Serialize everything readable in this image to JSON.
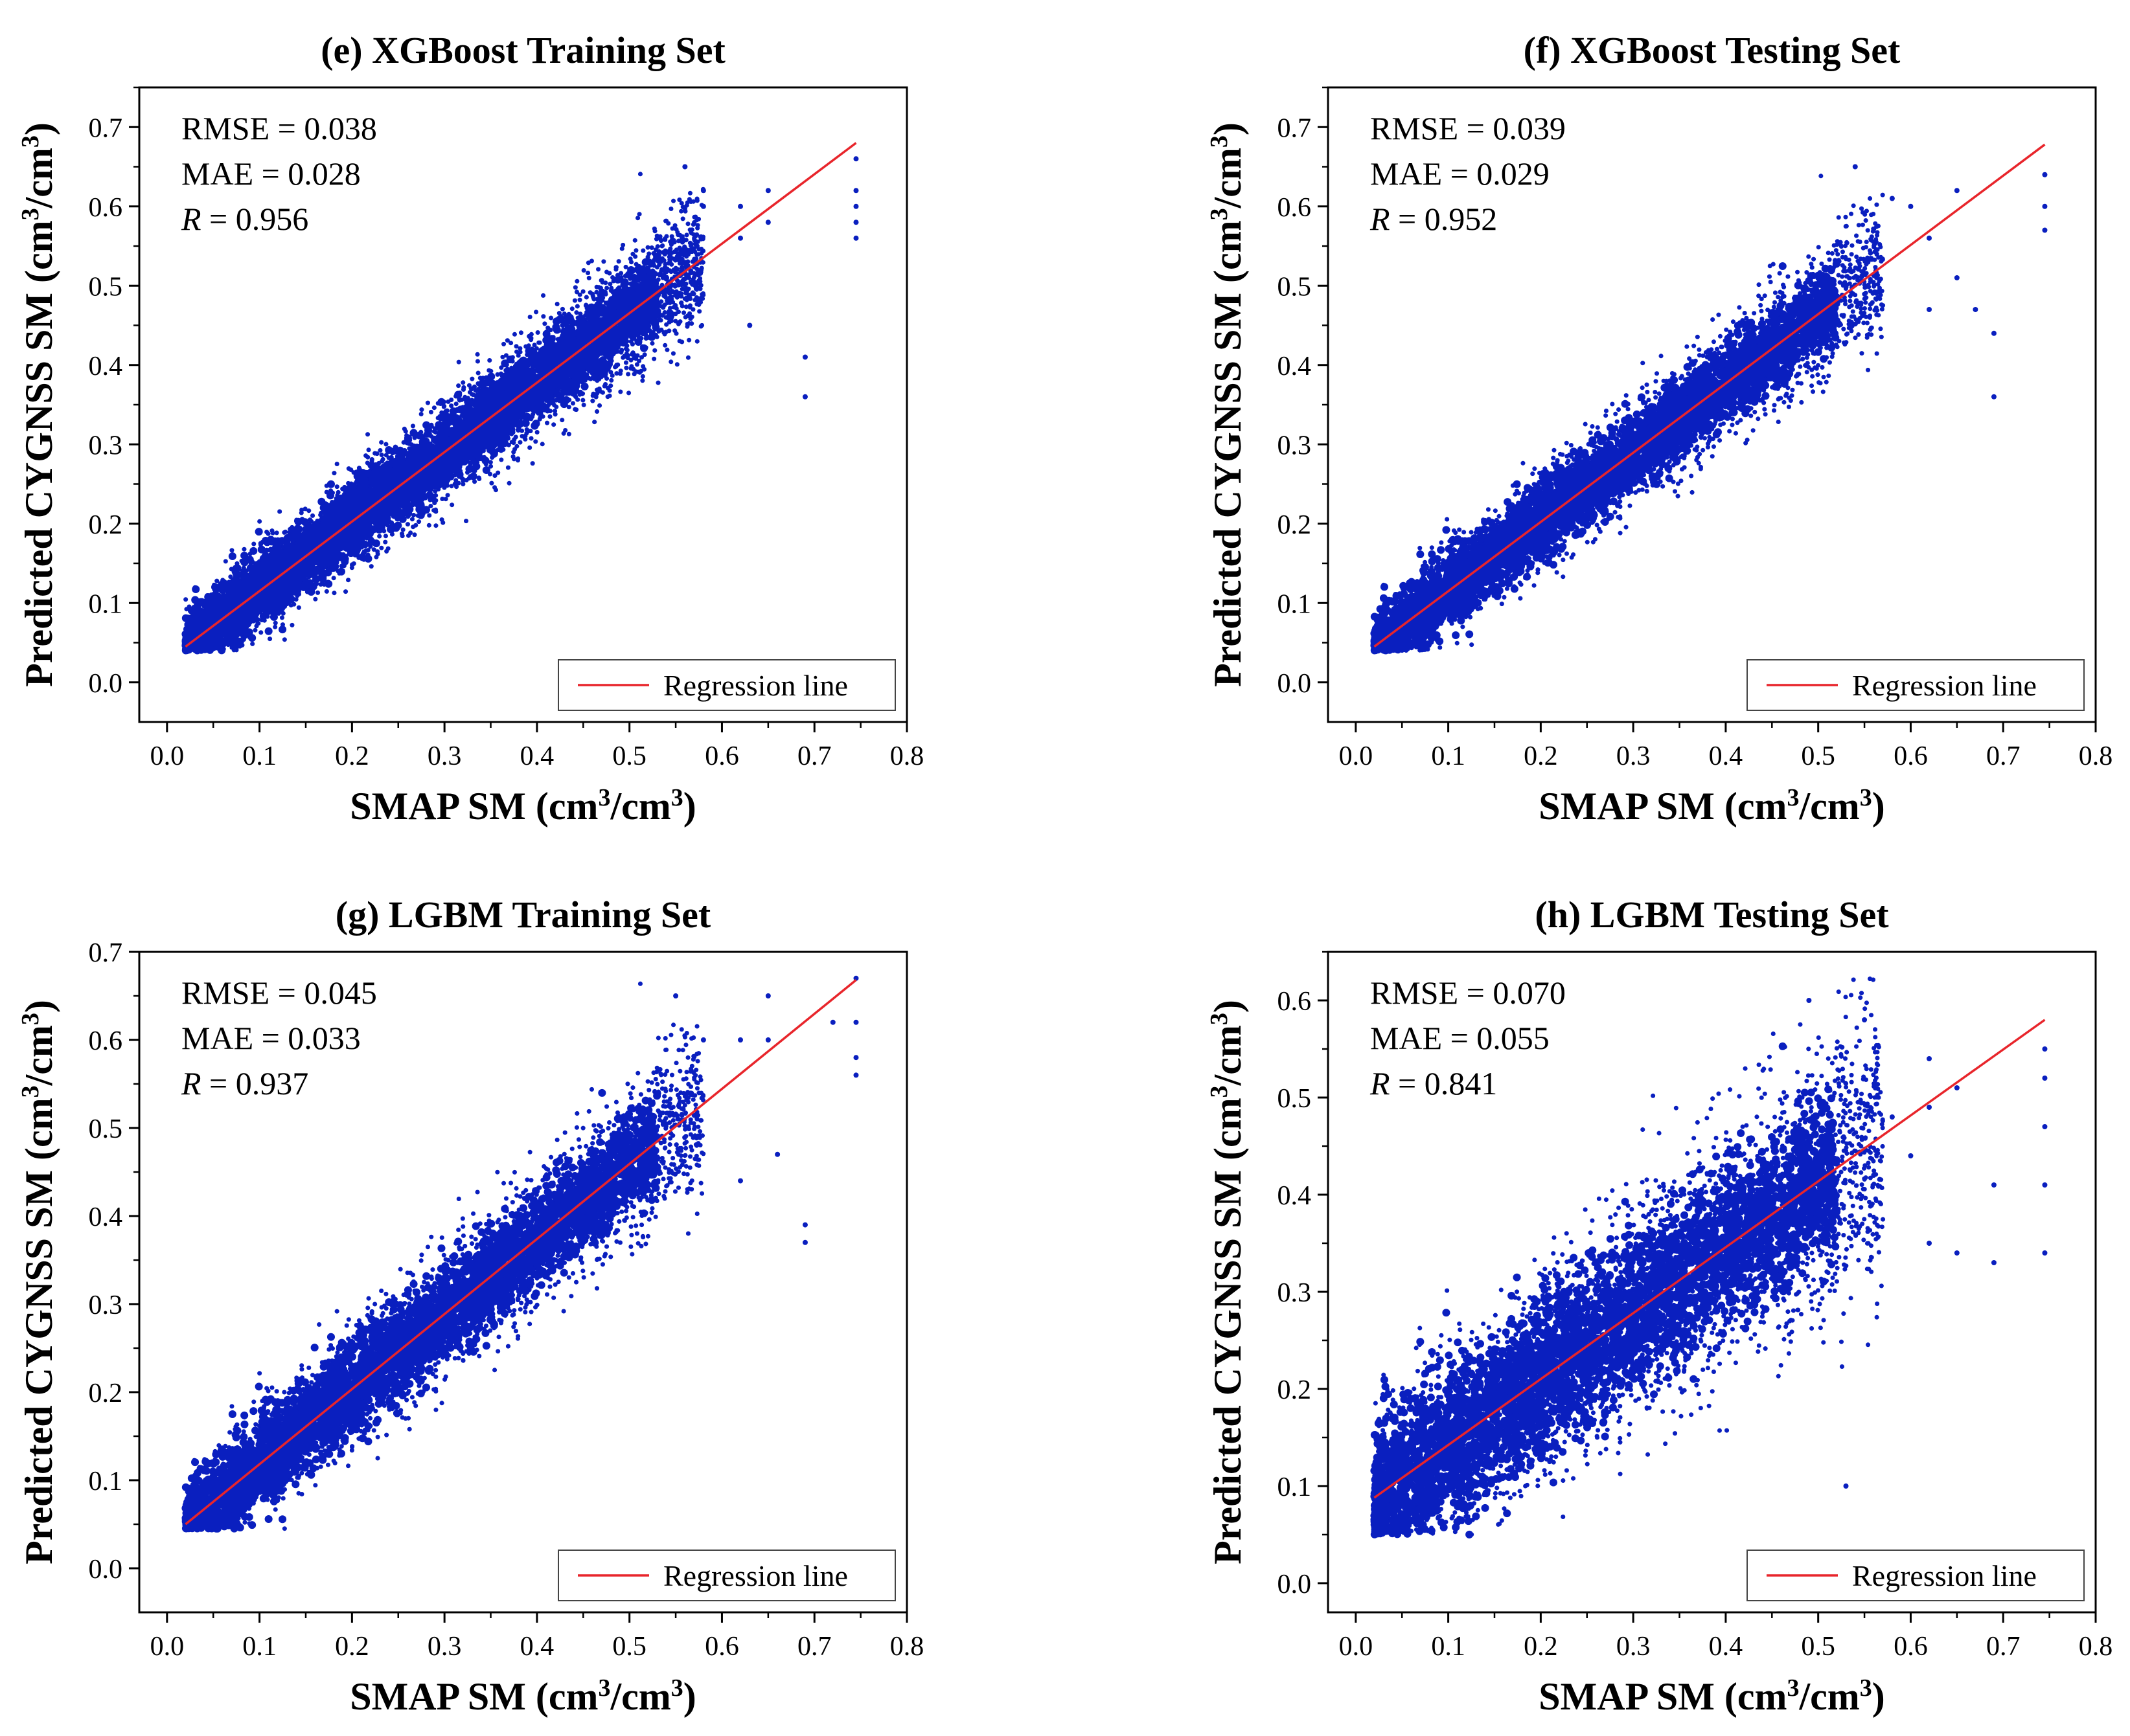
{
  "figure": {
    "background": "#ffffff",
    "point_color": "#0a1fbf",
    "line_color": "#e8252b"
  },
  "chart_data": [
    {
      "type": "scatter",
      "panel": "e",
      "title": "(e) XGBoost Training Set",
      "xlabel": {
        "main": "SMAP SM (cm",
        "sup1": "3",
        "mid": "/cm",
        "sup2": "3",
        "end": ")"
      },
      "ylabel": {
        "main": "Predicted CYGNSS SM (cm",
        "sup1": "3",
        "mid": "/cm",
        "sup2": "3",
        "end": ")"
      },
      "xlim": [
        -0.03,
        0.8
      ],
      "ylim": [
        -0.05,
        0.75
      ],
      "xticks": [
        "0.0",
        "0.1",
        "0.2",
        "0.3",
        "0.4",
        "0.5",
        "0.6",
        "0.7",
        "0.8"
      ],
      "yticks": [
        "0.0",
        "0.1",
        "0.2",
        "0.3",
        "0.4",
        "0.5",
        "0.6",
        "0.7"
      ],
      "stats": {
        "rmse": "RMSE = 0.038",
        "mae": "MAE = 0.028",
        "r_label": "R",
        "r_value": " = 0.956"
      },
      "regression_line": {
        "x": [
          0.02,
          0.745
        ],
        "y": [
          0.045,
          0.68
        ]
      },
      "legend": "Regression line",
      "point_cloud": {
        "x_range": [
          0.02,
          0.58
        ],
        "slope": 0.876,
        "intercept": 0.028,
        "spread": 0.038,
        "min_y": 0.04
      },
      "outliers": [
        [
          0.62,
          0.6
        ],
        [
          0.62,
          0.56
        ],
        [
          0.65,
          0.62
        ],
        [
          0.65,
          0.58
        ],
        [
          0.69,
          0.41
        ],
        [
          0.69,
          0.36
        ],
        [
          0.745,
          0.66
        ],
        [
          0.745,
          0.62
        ],
        [
          0.745,
          0.6
        ],
        [
          0.745,
          0.58
        ],
        [
          0.745,
          0.56
        ],
        [
          0.58,
          0.6
        ],
        [
          0.56,
          0.65
        ],
        [
          0.63,
          0.45
        ],
        [
          0.58,
          0.62
        ]
      ]
    },
    {
      "type": "scatter",
      "panel": "f",
      "title": "(f) XGBoost Testing Set",
      "xlabel": {
        "main": "SMAP SM (cm",
        "sup1": "3",
        "mid": "/cm",
        "sup2": "3",
        "end": ")"
      },
      "ylabel": {
        "main": "Predicted CYGNSS SM (cm",
        "sup1": "3",
        "mid": "/cm",
        "sup2": "3",
        "end": ")"
      },
      "xlim": [
        -0.03,
        0.8
      ],
      "ylim": [
        -0.05,
        0.75
      ],
      "xticks": [
        "0.0",
        "0.1",
        "0.2",
        "0.3",
        "0.4",
        "0.5",
        "0.6",
        "0.7",
        "0.8"
      ],
      "yticks": [
        "0.0",
        "0.1",
        "0.2",
        "0.3",
        "0.4",
        "0.5",
        "0.6",
        "0.7"
      ],
      "stats": {
        "rmse": "RMSE = 0.039",
        "mae": "MAE = 0.029",
        "r_label": "R",
        "r_value": " = 0.952"
      },
      "regression_line": {
        "x": [
          0.02,
          0.745
        ],
        "y": [
          0.045,
          0.678
        ]
      },
      "legend": "Regression line",
      "point_cloud": {
        "x_range": [
          0.02,
          0.57
        ],
        "slope": 0.872,
        "intercept": 0.028,
        "spread": 0.04,
        "min_y": 0.04
      },
      "outliers": [
        [
          0.6,
          0.6
        ],
        [
          0.62,
          0.56
        ],
        [
          0.62,
          0.47
        ],
        [
          0.65,
          0.62
        ],
        [
          0.65,
          0.51
        ],
        [
          0.69,
          0.44
        ],
        [
          0.69,
          0.36
        ],
        [
          0.745,
          0.64
        ],
        [
          0.745,
          0.6
        ],
        [
          0.745,
          0.57
        ],
        [
          0.58,
          0.61
        ],
        [
          0.54,
          0.65
        ],
        [
          0.67,
          0.47
        ]
      ]
    },
    {
      "type": "scatter",
      "panel": "g",
      "title": "(g) LGBM Training Set",
      "xlabel": {
        "main": "SMAP SM (cm",
        "sup1": "3",
        "mid": "/cm",
        "sup2": "3",
        "end": ")"
      },
      "ylabel": {
        "main": "Predicted CYGNSS SM (cm",
        "sup1": "3",
        "mid": "/cm",
        "sup2": "3",
        "end": ")"
      },
      "xlim": [
        -0.03,
        0.8
      ],
      "ylim": [
        -0.05,
        0.7
      ],
      "xticks": [
        "0.0",
        "0.1",
        "0.2",
        "0.3",
        "0.4",
        "0.5",
        "0.6",
        "0.7",
        "0.8"
      ],
      "yticks": [
        "0.0",
        "0.1",
        "0.2",
        "0.3",
        "0.4",
        "0.5",
        "0.6",
        "0.7"
      ],
      "stats": {
        "rmse": "RMSE = 0.045",
        "mae": "MAE = 0.033",
        "r_label": "R",
        "r_value": " = 0.937"
      },
      "regression_line": {
        "x": [
          0.02,
          0.745
        ],
        "y": [
          0.05,
          0.668
        ]
      },
      "legend": "Regression line",
      "point_cloud": {
        "x_range": [
          0.02,
          0.58
        ],
        "slope": 0.852,
        "intercept": 0.033,
        "spread": 0.045,
        "min_y": 0.045
      },
      "outliers": [
        [
          0.62,
          0.6
        ],
        [
          0.62,
          0.44
        ],
        [
          0.65,
          0.65
        ],
        [
          0.65,
          0.6
        ],
        [
          0.69,
          0.39
        ],
        [
          0.69,
          0.37
        ],
        [
          0.745,
          0.67
        ],
        [
          0.745,
          0.62
        ],
        [
          0.745,
          0.58
        ],
        [
          0.745,
          0.56
        ],
        [
          0.58,
          0.6
        ],
        [
          0.55,
          0.65
        ],
        [
          0.66,
          0.47
        ],
        [
          0.72,
          0.62
        ]
      ]
    },
    {
      "type": "scatter",
      "panel": "h",
      "title": "(h) LGBM Testing Set",
      "xlabel": {
        "main": "SMAP SM (cm",
        "sup1": "3",
        "mid": "/cm",
        "sup2": "3",
        "end": ")"
      },
      "ylabel": {
        "main": "Predicted CYGNSS SM (cm",
        "sup1": "3",
        "mid": "/cm",
        "sup2": "3",
        "end": ")"
      },
      "xlim": [
        -0.03,
        0.8
      ],
      "ylim": [
        -0.03,
        0.65
      ],
      "xticks": [
        "0.0",
        "0.1",
        "0.2",
        "0.3",
        "0.4",
        "0.5",
        "0.6",
        "0.7",
        "0.8"
      ],
      "yticks": [
        "0.0",
        "0.1",
        "0.2",
        "0.3",
        "0.4",
        "0.5",
        "0.6"
      ],
      "stats": {
        "rmse": "RMSE = 0.070",
        "mae": "MAE = 0.055",
        "r_label": "R",
        "r_value": " = 0.841"
      },
      "regression_line": {
        "x": [
          0.02,
          0.745
        ],
        "y": [
          0.088,
          0.58
        ]
      },
      "legend": "Regression line",
      "point_cloud": {
        "x_range": [
          0.02,
          0.57
        ],
        "slope": 0.68,
        "intercept": 0.074,
        "spread": 0.07,
        "min_y": 0.05
      },
      "outliers": [
        [
          0.6,
          0.44
        ],
        [
          0.62,
          0.54
        ],
        [
          0.62,
          0.49
        ],
        [
          0.62,
          0.35
        ],
        [
          0.65,
          0.51
        ],
        [
          0.65,
          0.34
        ],
        [
          0.69,
          0.41
        ],
        [
          0.69,
          0.33
        ],
        [
          0.745,
          0.55
        ],
        [
          0.745,
          0.52
        ],
        [
          0.745,
          0.47
        ],
        [
          0.745,
          0.41
        ],
        [
          0.745,
          0.34
        ],
        [
          0.49,
          0.6
        ],
        [
          0.55,
          0.58
        ],
        [
          0.58,
          0.48
        ],
        [
          0.56,
          0.42
        ],
        [
          0.53,
          0.1
        ]
      ]
    }
  ]
}
